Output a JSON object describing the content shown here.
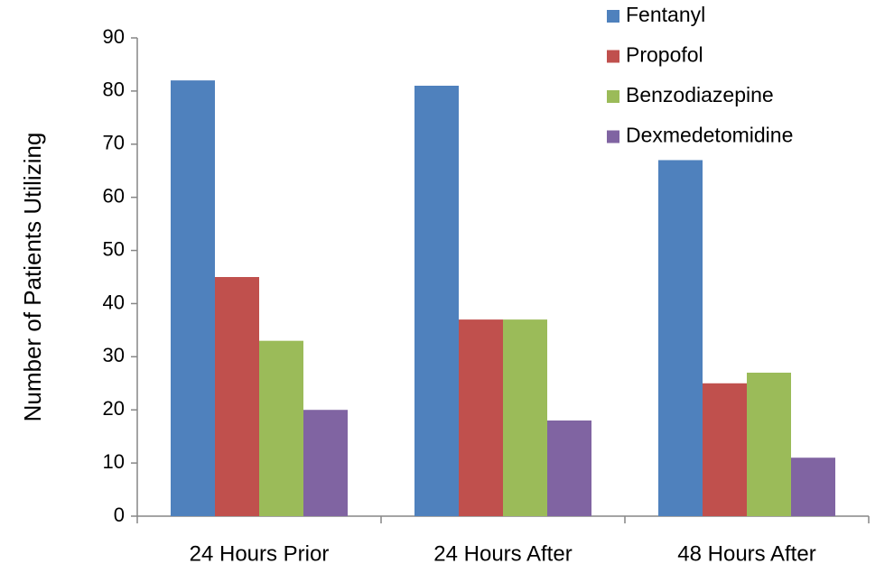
{
  "chart_data": {
    "type": "bar",
    "y_label": "Number of Patients Utilizing",
    "categories": [
      "24 Hours Prior",
      "24 Hours After",
      "48 Hours After"
    ],
    "series": [
      {
        "name": "Fentanyl",
        "color": "#4f81bd",
        "values": [
          82,
          81,
          67
        ]
      },
      {
        "name": "Propofol",
        "color": "#c0504d",
        "values": [
          45,
          37,
          25
        ]
      },
      {
        "name": "Benzodiazepine",
        "color": "#9bbb59",
        "values": [
          33,
          37,
          27
        ]
      },
      {
        "name": "Dexmedetomidine",
        "color": "#8064a2",
        "values": [
          20,
          18,
          11
        ]
      }
    ],
    "ylim": [
      0,
      90
    ],
    "yticks": [
      0,
      10,
      20,
      30,
      40,
      50,
      60,
      70,
      80,
      90
    ],
    "grid": false,
    "legend": "top-right"
  }
}
